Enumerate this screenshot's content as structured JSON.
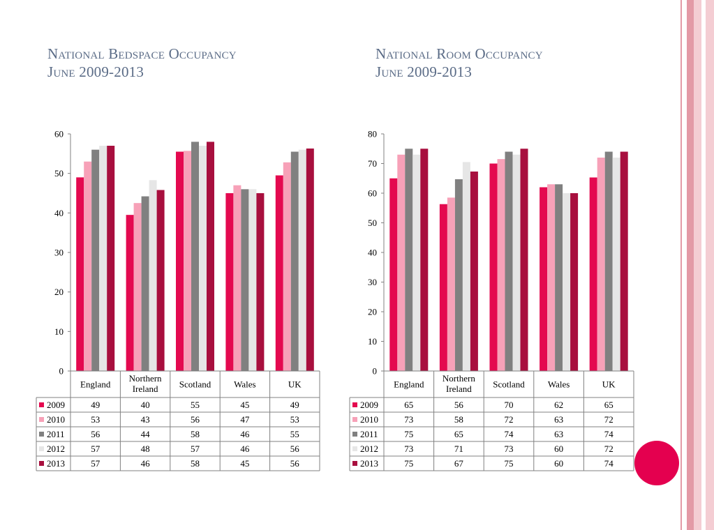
{
  "colors": {
    "title": "#5a6b86",
    "accent": "#e4004f",
    "stripe_dark": "#e39aa6",
    "stripe_light": "#f4cdd3",
    "series": [
      "#e4094f",
      "#f7a1b8",
      "#808080",
      "#e6e6e6",
      "#a80f3e"
    ]
  },
  "chart_data": [
    {
      "type": "bar",
      "title": "National Bedspace Occupancy June 2009-2013",
      "title_lines": [
        "National Bedspace Occupancy",
        "June 2009-2013"
      ],
      "categories": [
        "England",
        "Northern Ireland",
        "Scotland",
        "Wales",
        "UK"
      ],
      "category_lines": [
        [
          "England"
        ],
        [
          "Northern",
          "Ireland"
        ],
        [
          "Scotland"
        ],
        [
          "Wales"
        ],
        [
          "UK"
        ]
      ],
      "ylim": [
        0,
        60
      ],
      "yticks": [
        0,
        10,
        20,
        30,
        40,
        50,
        60
      ],
      "grid": false,
      "legend": "data table below chart",
      "series": [
        {
          "name": "2009",
          "values": [
            49,
            40,
            55,
            45,
            49
          ],
          "bar_values": [
            49,
            39.5,
            55.5,
            45,
            49.5
          ]
        },
        {
          "name": "2010",
          "values": [
            53,
            43,
            56,
            47,
            53
          ],
          "bar_values": [
            53,
            42.5,
            55.7,
            47,
            52.8
          ]
        },
        {
          "name": "2011",
          "values": [
            56,
            44,
            58,
            46,
            55
          ],
          "bar_values": [
            56,
            44.2,
            58,
            46,
            55.5
          ]
        },
        {
          "name": "2012",
          "values": [
            57,
            48,
            57,
            46,
            56
          ],
          "bar_values": [
            57,
            48.3,
            57,
            46,
            56
          ]
        },
        {
          "name": "2013",
          "values": [
            57,
            46,
            58,
            45,
            56
          ],
          "bar_values": [
            57,
            45.8,
            58,
            45,
            56.3
          ]
        }
      ]
    },
    {
      "type": "bar",
      "title": "National Room Occupancy June 2009-2013",
      "title_lines": [
        "National Room Occupancy",
        "June 2009-2013"
      ],
      "categories": [
        "England",
        "Northern Ireland",
        "Scotland",
        "Wales",
        "UK"
      ],
      "category_lines": [
        [
          "England"
        ],
        [
          "Northern",
          "Ireland"
        ],
        [
          "Scotland"
        ],
        [
          "Wales"
        ],
        [
          "UK"
        ]
      ],
      "ylim": [
        0,
        80
      ],
      "yticks": [
        0,
        10,
        20,
        30,
        40,
        50,
        60,
        70,
        80
      ],
      "grid": false,
      "legend": "data table below chart",
      "series": [
        {
          "name": "2009",
          "values": [
            65,
            56,
            70,
            62,
            65
          ],
          "bar_values": [
            65,
            56.3,
            70,
            62,
            65.3
          ]
        },
        {
          "name": "2010",
          "values": [
            73,
            58,
            72,
            63,
            72
          ],
          "bar_values": [
            73,
            58.5,
            71.5,
            63,
            72
          ]
        },
        {
          "name": "2011",
          "values": [
            75,
            65,
            74,
            63,
            74
          ],
          "bar_values": [
            75,
            64.7,
            74,
            63,
            74
          ]
        },
        {
          "name": "2012",
          "values": [
            73,
            71,
            73,
            60,
            72
          ],
          "bar_values": [
            73,
            70.5,
            73,
            60,
            72
          ]
        },
        {
          "name": "2013",
          "values": [
            75,
            67,
            75,
            60,
            74
          ],
          "bar_values": [
            75,
            67.3,
            75,
            60,
            74
          ]
        }
      ]
    }
  ]
}
